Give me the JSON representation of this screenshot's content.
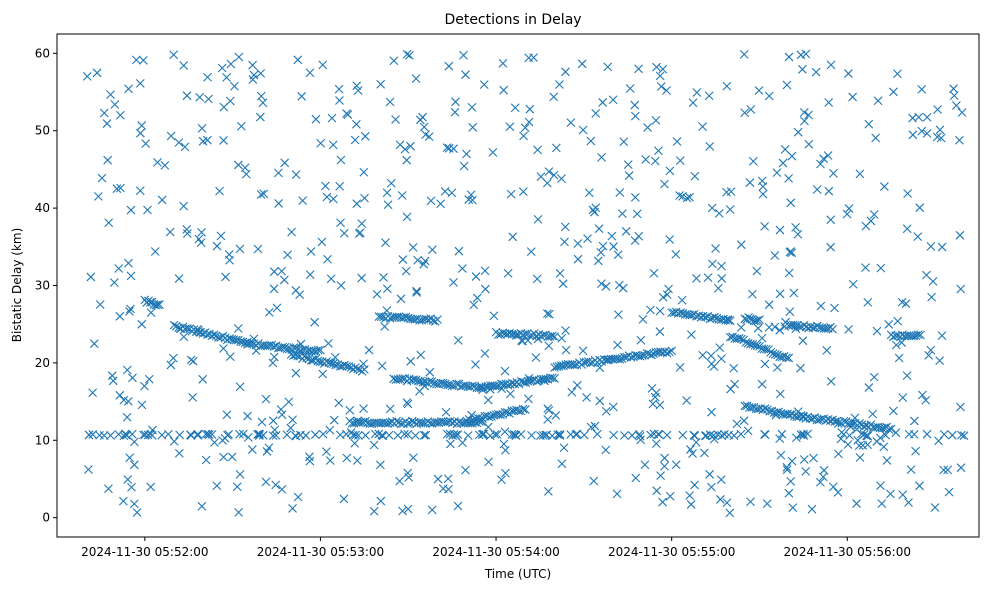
{
  "chart_data": {
    "type": "scatter",
    "title": "Detections in Delay",
    "xlabel": "Time (UTC)",
    "ylabel": "Bistatic Delay (km)",
    "marker": "x",
    "color": "#1f77b4",
    "x_ticks": [
      "2024-11-30 05:52:00",
      "2024-11-30 05:53:00",
      "2024-11-30 05:54:00",
      "2024-11-30 05:55:00",
      "2024-11-30 05:56:00"
    ],
    "y_ticks": [
      0,
      10,
      20,
      30,
      40,
      50,
      60
    ],
    "xlim": [
      "2024-11-30 05:51:30",
      "2024-11-30 05:56:45"
    ],
    "ylim": [
      -2.5,
      62.5
    ],
    "tracks": [
      {
        "x": [
          "05:52:10",
          "05:52:35"
        ],
        "y": [
          24.8,
          22.5
        ]
      },
      {
        "x": [
          "05:52:35",
          "05:53:00"
        ],
        "y": [
          22.5,
          21.5
        ]
      },
      {
        "x": [
          "05:52:50",
          "05:53:15"
        ],
        "y": [
          21.0,
          19.0
        ]
      },
      {
        "x": [
          "05:53:20",
          "05:53:40"
        ],
        "y": [
          26.0,
          25.5
        ]
      },
      {
        "x": [
          "05:53:25",
          "05:53:55"
        ],
        "y": [
          18.0,
          16.8
        ]
      },
      {
        "x": [
          "05:53:55",
          "05:54:20"
        ],
        "y": [
          16.8,
          18.0
        ]
      },
      {
        "x": [
          "05:54:00",
          "05:54:20"
        ],
        "y": [
          23.8,
          23.5
        ]
      },
      {
        "x": [
          "05:54:20",
          "05:55:00"
        ],
        "y": [
          19.5,
          21.5
        ]
      },
      {
        "x": [
          "05:53:10",
          "05:53:55"
        ],
        "y": [
          12.3,
          12.3
        ]
      },
      {
        "x": [
          "05:53:50",
          "05:54:10"
        ],
        "y": [
          12.5,
          14.0
        ]
      },
      {
        "x": [
          "05:55:00",
          "05:55:20"
        ],
        "y": [
          26.5,
          25.5
        ]
      },
      {
        "x": [
          "05:55:25",
          "05:55:30"
        ],
        "y": [
          25.8,
          25.5
        ]
      },
      {
        "x": [
          "05:55:20",
          "05:55:40"
        ],
        "y": [
          23.5,
          20.5
        ]
      },
      {
        "x": [
          "05:55:40",
          "05:55:55"
        ],
        "y": [
          24.8,
          24.5
        ]
      },
      {
        "x": [
          "05:55:25",
          "05:55:45"
        ],
        "y": [
          14.5,
          13.0
        ]
      },
      {
        "x": [
          "05:55:45",
          "05:56:15"
        ],
        "y": [
          13.0,
          11.5
        ]
      },
      {
        "x": [
          "05:52:00",
          "05:52:05"
        ],
        "y": [
          28.0,
          27.5
        ]
      },
      {
        "x": [
          "05:56:15",
          "05:56:25"
        ],
        "y": [
          23.5,
          23.5
        ]
      }
    ],
    "clutter": {
      "x_range": [
        "05:51:40",
        "05:56:40"
      ],
      "y_range": [
        0.5,
        60
      ]
    },
    "clutter_band": {
      "y": 10.7
    }
  }
}
